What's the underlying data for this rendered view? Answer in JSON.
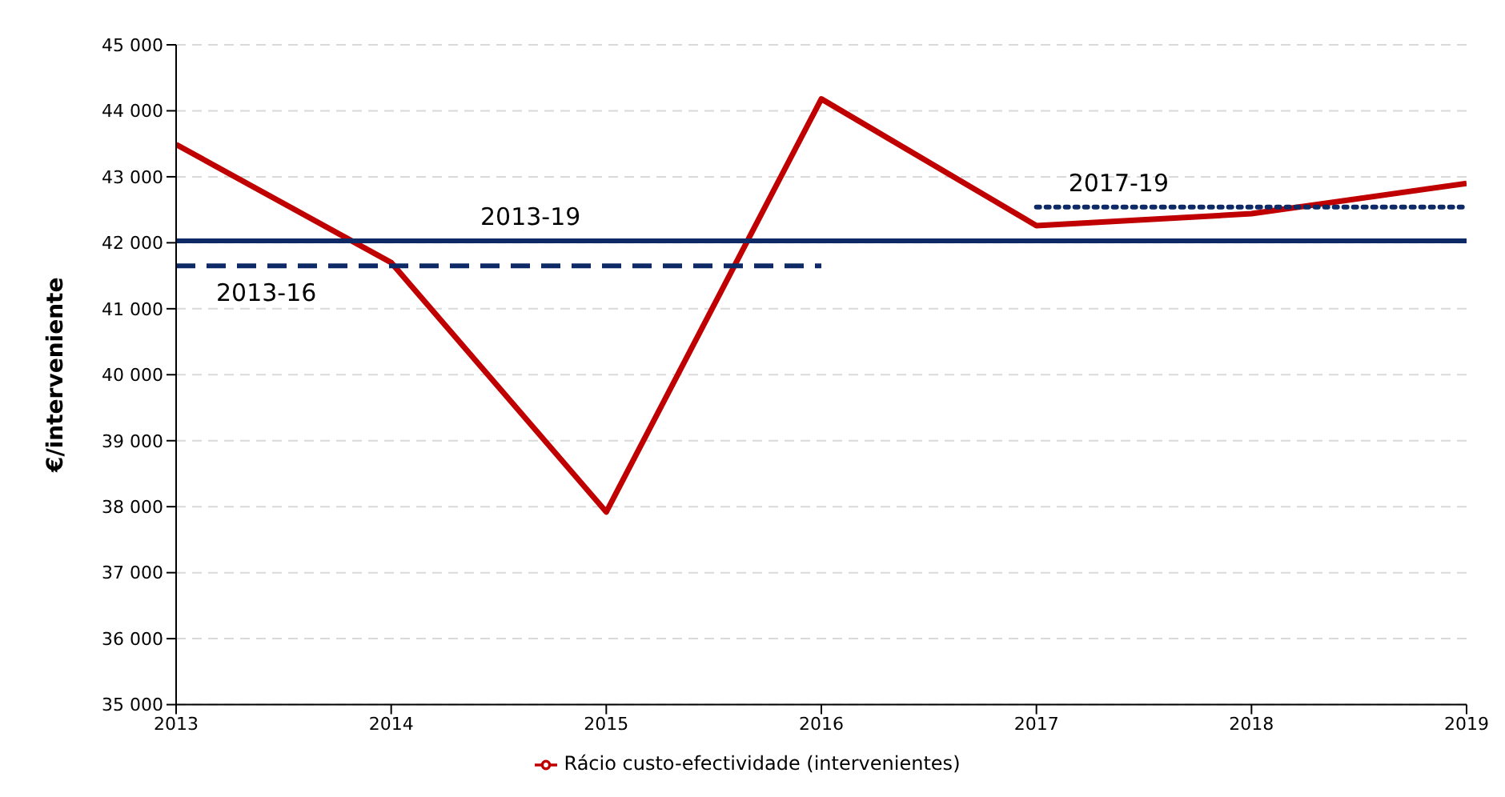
{
  "chart_data": {
    "type": "line",
    "ylabel": "€/interveniente",
    "x": [
      2013,
      2014,
      2015,
      2016,
      2017,
      2018,
      2019
    ],
    "series": [
      {
        "name": "Rácio custo-efectividade (intervenientes)",
        "color": "#c00000",
        "values": [
          43490,
          41700,
          37920,
          44180,
          42260,
          42440,
          42900
        ]
      },
      {
        "name": "2013-19",
        "color": "#0d2a66",
        "x": [
          2013,
          2019
        ],
        "values": [
          42030,
          42030
        ],
        "line_style": "solid"
      },
      {
        "name": "2013-16",
        "color": "#0d2a66",
        "x": [
          2013,
          2016
        ],
        "values": [
          41650,
          41650
        ],
        "line_style": "dashed"
      },
      {
        "name": "2017-19",
        "color": "#0d2a66",
        "x": [
          2017,
          2019
        ],
        "values": [
          42540,
          42540
        ],
        "line_style": "dotted"
      }
    ],
    "xlim": [
      2013,
      2019
    ],
    "xticks": [
      2013,
      2014,
      2015,
      2016,
      2017,
      2018,
      2019
    ],
    "ylim": [
      35000,
      45000
    ],
    "yticks": [
      {
        "value": 35000,
        "label": "35 000"
      },
      {
        "value": 36000,
        "label": "36 000"
      },
      {
        "value": 37000,
        "label": "37 000"
      },
      {
        "value": 38000,
        "label": "38 000"
      },
      {
        "value": 39000,
        "label": "39 000"
      },
      {
        "value": 40000,
        "label": "40 000"
      },
      {
        "value": 41000,
        "label": "41 000"
      },
      {
        "value": 42000,
        "label": "42 000"
      },
      {
        "value": 43000,
        "label": "43 000"
      },
      {
        "value": 44000,
        "label": "44 000"
      },
      {
        "value": 45000,
        "label": "45 000"
      }
    ],
    "grid": "y",
    "legend": "bottom",
    "marker": "none"
  }
}
